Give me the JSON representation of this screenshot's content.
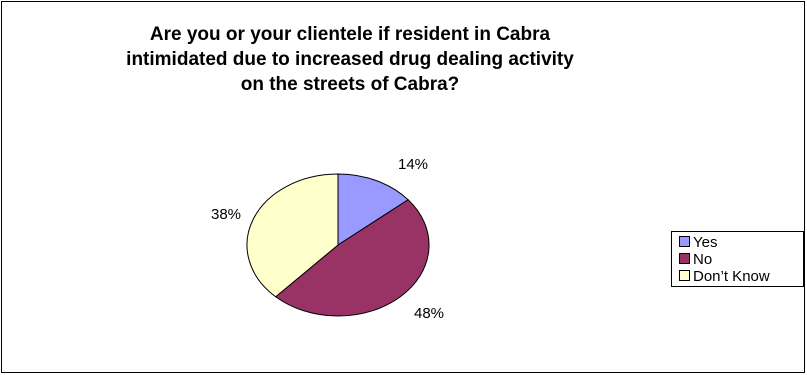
{
  "chart_data": {
    "type": "pie",
    "title": "Are you or your clientele if resident in Cabra intimidated due to increased drug dealing activity on the streets of Cabra?",
    "title_lines": [
      "Are you or your clientele if resident in Cabra",
      "intimidated due to increased drug dealing activity",
      "on the streets of Cabra?"
    ],
    "categories": [
      "Yes",
      "No",
      "Don't Know"
    ],
    "values": [
      14,
      48,
      38
    ],
    "data_labels": [
      "14%",
      "48%",
      "38%"
    ],
    "colors": [
      "#9999ff",
      "#993366",
      "#ffffcc"
    ],
    "legend": {
      "placement": "right",
      "entries": [
        "Yes",
        "No",
        "Don’t Know"
      ]
    }
  }
}
